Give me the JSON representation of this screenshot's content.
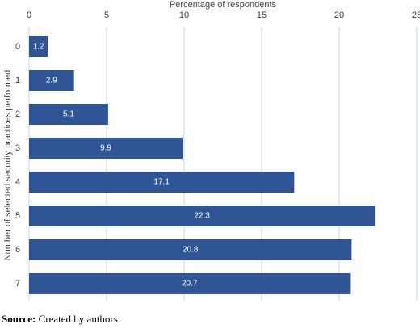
{
  "chart_data": {
    "type": "bar",
    "orientation": "horizontal",
    "x_label": "Percentage of respondents",
    "y_label": "Number of selected security practices performed",
    "categories": [
      "0",
      "1",
      "2",
      "3",
      "4",
      "5",
      "6",
      "7"
    ],
    "values": [
      1.2,
      2.9,
      5.1,
      9.9,
      17.1,
      22.3,
      20.8,
      20.7
    ],
    "color": "#2f5597",
    "xlim": [
      0,
      25
    ],
    "xticks": [
      0,
      5,
      10,
      15,
      20,
      25
    ],
    "grid": true
  },
  "source": {
    "label": "Source:",
    "text": "Created by authors"
  }
}
